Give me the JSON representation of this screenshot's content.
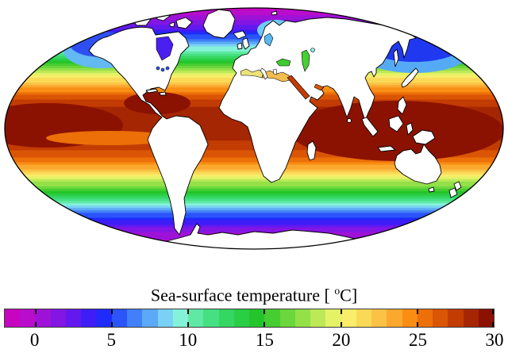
{
  "title": {
    "prefix": "Sea-surface temperature [ ",
    "sup": "o",
    "suffix": "C]"
  },
  "chart_data": {
    "type": "heatmap",
    "title": "Sea-surface temperature [ °C]",
    "projection": "Mollweide",
    "colorbar": {
      "range": [
        -2,
        30
      ],
      "band_width_c": 1,
      "tick_values": [
        0,
        5,
        10,
        15,
        20,
        25,
        30
      ],
      "tick_labels": [
        "0",
        "5",
        "10",
        "15",
        "20",
        "25",
        "30"
      ],
      "colors": [
        "#C705C0",
        "#B90DCC",
        "#9E12D8",
        "#8316E3",
        "#6319EE",
        "#3E1DF7",
        "#1F2BFD",
        "#2B55FB",
        "#4180F9",
        "#5BA9F7",
        "#79D2F5",
        "#84F2D8",
        "#5FE9A4",
        "#46E083",
        "#35D763",
        "#2ACE45",
        "#24C52A",
        "#45CD31",
        "#6BD73C",
        "#93E049",
        "#BCE957",
        "#E4F266",
        "#F9ED69",
        "#FAD957",
        "#FBC245",
        "#FBA82F",
        "#FA8D13",
        "#EC6F08",
        "#DA5505",
        "#C23C03",
        "#A52602",
        "#8B1201"
      ]
    },
    "zonal_profile": {
      "frac": [
        0,
        0.045,
        0.09,
        0.14,
        0.19,
        0.24,
        0.3,
        0.36,
        0.42,
        0.5,
        0.57,
        0.63,
        0.68,
        0.73,
        0.77,
        0.815,
        0.86,
        0.91,
        0.955,
        1.0
      ],
      "temp_c": [
        -1.5,
        0.5,
        3,
        7,
        11,
        16,
        21.5,
        26,
        28.4,
        28.6,
        27.8,
        25.5,
        22,
        17.5,
        13.5,
        9.5,
        5.5,
        2,
        0,
        -1.5
      ]
    },
    "features": {
      "land": "#FFFFFF",
      "coastline": "#000000",
      "outline": "#000000",
      "warm_pool": "#8B1201",
      "equatorial_cold_tongue": "#EC6F08",
      "subarctic_pacific_core": "#2038F0",
      "subarctic_pacific_halo": "#55AAF6",
      "gulf_of_alaska_core": "#2E50F3",
      "gulf_of_alaska_halo": "#63B9F2",
      "norwegian_sea": "#6FCBF4",
      "hudson_bay": "#4A20F0",
      "baltic_sea": "#58B9F2",
      "mediterranean_west": "#EDE27A",
      "mediterranean_east": "#F1BD4F",
      "black_sea": "#3DCB2F",
      "caspian_sea": "#46CF33",
      "aral_sea": "#8CF0E0",
      "red_sea": "#C23C03",
      "persian_gulf": "#D85505",
      "great_lakes": "#2B55FB"
    }
  }
}
